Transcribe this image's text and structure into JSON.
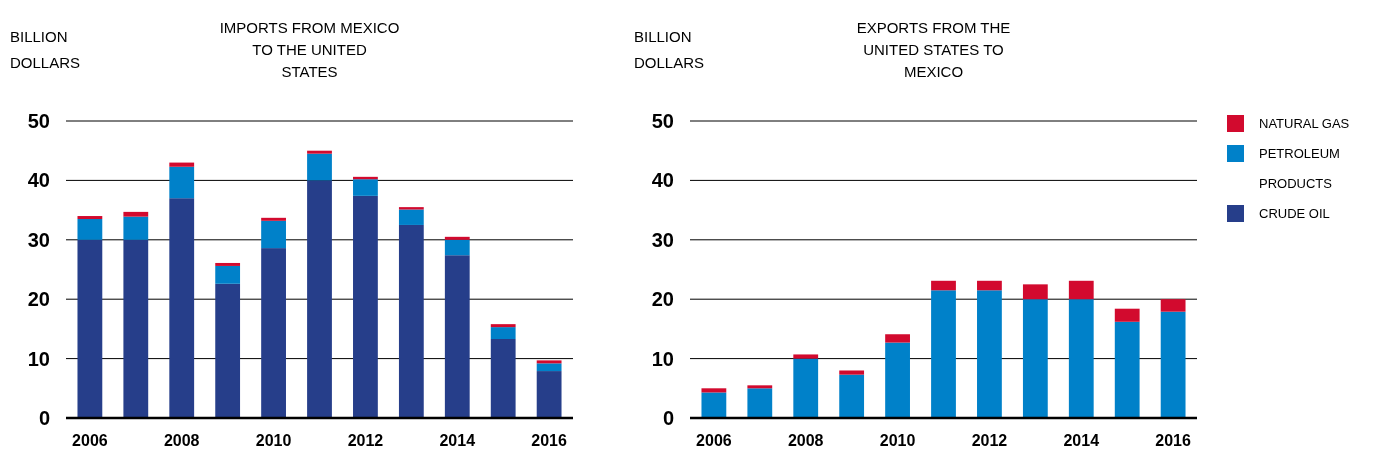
{
  "chart_data": [
    {
      "type": "bar",
      "title": "IMPORTS FROM MEXICO TO THE UNITED STATES",
      "ylabel": "BILLION DOLLARS",
      "stacked": true,
      "categories": [
        "2006",
        null,
        "2008",
        null,
        "2010",
        null,
        "2012",
        null,
        "2014",
        null,
        "2016"
      ],
      "ylim": [
        0,
        50
      ],
      "yticks": [
        0,
        10,
        20,
        30,
        40,
        50
      ],
      "grid": "y",
      "legend": false,
      "series": [
        {
          "color": "#263e8a",
          "values": [
            30,
            30,
            37,
            22.6,
            28.6,
            40,
            37.4,
            32.5,
            27.4,
            13.3,
            7.9
          ]
        },
        {
          "color": "#0081c9",
          "values": [
            3.5,
            3.9,
            5.3,
            3.0,
            4.6,
            4.5,
            2.8,
            2.6,
            2.6,
            2.0,
            1.3
          ]
        },
        {
          "color": "#d20a2e",
          "values": [
            0.5,
            0.8,
            0.7,
            0.5,
            0.5,
            0.5,
            0.4,
            0.4,
            0.5,
            0.5,
            0.5
          ]
        }
      ]
    },
    {
      "type": "bar",
      "title": "EXPORTS FROM THE UNITED STATES TO MEXICO",
      "ylabel": "BILLION DOLLARS",
      "stacked": true,
      "categories": [
        "2006",
        null,
        "2008",
        null,
        "2010",
        null,
        "2012",
        null,
        "2014",
        null,
        "2016"
      ],
      "ylim": [
        0,
        50
      ],
      "yticks": [
        0,
        10,
        20,
        30,
        40,
        50
      ],
      "grid": "y",
      "legend": "right",
      "series": [
        {
          "name": "CRUDE OIL",
          "color": "#263e8a",
          "values": [
            0,
            0,
            0,
            0,
            0,
            0,
            0,
            0,
            0,
            0,
            0
          ]
        },
        {
          "name": "PETROLEUM PRODUCTS",
          "color": "#0081c9",
          "values": [
            4.3,
            5.0,
            10,
            7.3,
            12.7,
            21.5,
            21.5,
            20,
            20,
            16.2,
            17.9
          ]
        },
        {
          "name": "NATURAL GAS",
          "color": "#d20a2e",
          "values": [
            0.7,
            0.5,
            0.7,
            0.7,
            1.4,
            1.6,
            1.6,
            2.5,
            3.1,
            2.2,
            2.1
          ]
        }
      ]
    }
  ]
}
